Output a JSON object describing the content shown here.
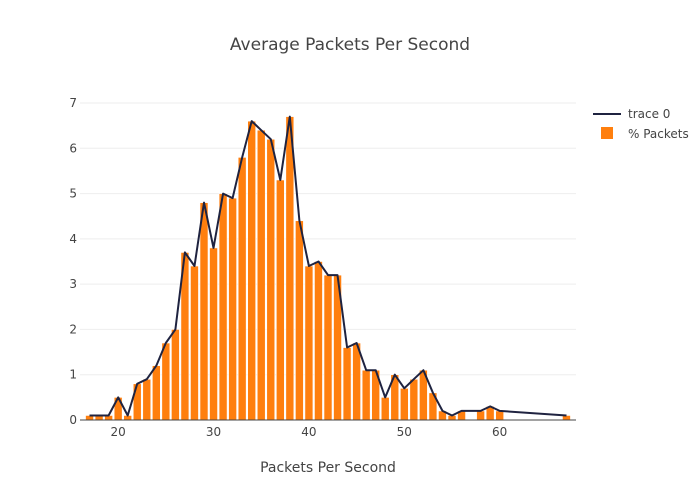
{
  "chart_data": {
    "type": "bar",
    "title": "Average Packets Per Second",
    "xlabel": "Packets Per Second",
    "ylabel": "",
    "xlim": [
      16,
      68
    ],
    "ylim": [
      0,
      7
    ],
    "xticks": [
      20,
      30,
      40,
      50,
      60
    ],
    "yticks": [
      0,
      1,
      2,
      3,
      4,
      5,
      6,
      7
    ],
    "grid": true,
    "legend_position": "top-right",
    "x": [
      17,
      18,
      19,
      20,
      21,
      22,
      23,
      24,
      25,
      26,
      27,
      28,
      29,
      30,
      31,
      32,
      33,
      34,
      35,
      36,
      37,
      38,
      39,
      40,
      41,
      42,
      43,
      44,
      45,
      46,
      47,
      48,
      49,
      50,
      51,
      52,
      53,
      54,
      55,
      56,
      57,
      58,
      59,
      60,
      67
    ],
    "series": [
      {
        "name": "trace 0",
        "kind": "line",
        "color": "#1f2340",
        "values": [
          0.1,
          0.1,
          0.1,
          0.5,
          0.1,
          0.8,
          0.9,
          1.2,
          1.7,
          2.0,
          3.7,
          3.4,
          4.8,
          3.8,
          5.0,
          4.9,
          5.8,
          6.6,
          6.4,
          6.2,
          5.3,
          6.7,
          4.4,
          3.4,
          3.5,
          3.2,
          3.2,
          1.6,
          1.7,
          1.1,
          1.1,
          0.5,
          1.0,
          0.7,
          0.9,
          1.1,
          0.6,
          0.2,
          0.1,
          0.2,
          0.2,
          0.2,
          0.3,
          0.2,
          0.1
        ]
      },
      {
        "name": "% Packets",
        "kind": "bar",
        "color": "#ff7f0e",
        "values": [
          0.1,
          0.1,
          0.1,
          0.5,
          0.1,
          0.8,
          0.9,
          1.2,
          1.7,
          2.0,
          3.7,
          3.4,
          4.8,
          3.8,
          5.0,
          4.9,
          5.8,
          6.6,
          6.4,
          6.2,
          5.3,
          6.7,
          4.4,
          3.4,
          3.5,
          3.2,
          3.2,
          1.6,
          1.7,
          1.1,
          1.1,
          0.5,
          1.0,
          0.7,
          0.9,
          1.1,
          0.6,
          0.2,
          0.1,
          0.2,
          0.0,
          0.2,
          0.3,
          0.2,
          0.1
        ]
      }
    ]
  }
}
